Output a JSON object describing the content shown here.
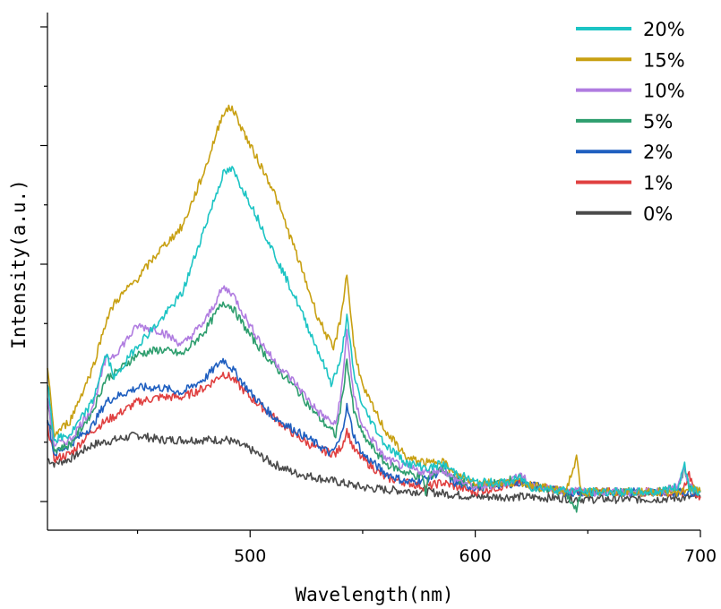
{
  "chart_data": {
    "type": "line",
    "xlabel": "Wavelength(nm)",
    "ylabel": "Intensity(a.u.)",
    "xlim": [
      410,
      700
    ],
    "ylim": [
      0,
      1.0
    ],
    "xticks": [
      500,
      600,
      700
    ],
    "legend": "top-right",
    "grid": false,
    "series": [
      {
        "name": "20%",
        "color": "#1CC4C4",
        "points": [
          [
            410,
            0.25
          ],
          [
            413,
            0.13
          ],
          [
            420,
            0.14
          ],
          [
            430,
            0.21
          ],
          [
            436,
            0.31
          ],
          [
            440,
            0.26
          ],
          [
            450,
            0.33
          ],
          [
            460,
            0.38
          ],
          [
            470,
            0.44
          ],
          [
            480,
            0.58
          ],
          [
            488,
            0.69
          ],
          [
            492,
            0.7
          ],
          [
            500,
            0.63
          ],
          [
            510,
            0.53
          ],
          [
            520,
            0.43
          ],
          [
            530,
            0.32
          ],
          [
            536,
            0.25
          ],
          [
            540,
            0.29
          ],
          [
            543,
            0.39
          ],
          [
            546,
            0.27
          ],
          [
            550,
            0.2
          ],
          [
            560,
            0.12
          ],
          [
            570,
            0.08
          ],
          [
            580,
            0.07
          ],
          [
            585,
            0.08
          ],
          [
            588,
            0.07
          ],
          [
            600,
            0.04
          ],
          [
            615,
            0.04
          ],
          [
            620,
            0.05
          ],
          [
            625,
            0.03
          ],
          [
            650,
            0.02
          ],
          [
            680,
            0.02
          ],
          [
            690,
            0.03
          ],
          [
            693,
            0.08
          ],
          [
            695,
            0.03
          ],
          [
            700,
            0.02
          ]
        ]
      },
      {
        "name": "15%",
        "color": "#C8A012",
        "points": [
          [
            410,
            0.28
          ],
          [
            413,
            0.14
          ],
          [
            420,
            0.17
          ],
          [
            430,
            0.28
          ],
          [
            436,
            0.38
          ],
          [
            440,
            0.42
          ],
          [
            450,
            0.47
          ],
          [
            460,
            0.53
          ],
          [
            470,
            0.58
          ],
          [
            480,
            0.7
          ],
          [
            488,
            0.82
          ],
          [
            492,
            0.83
          ],
          [
            500,
            0.75
          ],
          [
            510,
            0.66
          ],
          [
            520,
            0.53
          ],
          [
            530,
            0.39
          ],
          [
            537,
            0.32
          ],
          [
            540,
            0.38
          ],
          [
            543,
            0.48
          ],
          [
            546,
            0.33
          ],
          [
            550,
            0.24
          ],
          [
            560,
            0.15
          ],
          [
            570,
            0.09
          ],
          [
            580,
            0.08
          ],
          [
            585,
            0.09
          ],
          [
            590,
            0.06
          ],
          [
            600,
            0.04
          ],
          [
            620,
            0.04
          ],
          [
            640,
            0.02
          ],
          [
            645,
            0.09
          ],
          [
            647,
            0.02
          ],
          [
            680,
            0.02
          ],
          [
            692,
            0.02
          ],
          [
            695,
            0.03
          ],
          [
            700,
            0.02
          ]
        ]
      },
      {
        "name": "10%",
        "color": "#B07CE0",
        "points": [
          [
            410,
            0.22
          ],
          [
            413,
            0.12
          ],
          [
            420,
            0.13
          ],
          [
            430,
            0.2
          ],
          [
            436,
            0.3
          ],
          [
            440,
            0.31
          ],
          [
            450,
            0.37
          ],
          [
            460,
            0.36
          ],
          [
            470,
            0.33
          ],
          [
            480,
            0.38
          ],
          [
            488,
            0.45
          ],
          [
            492,
            0.44
          ],
          [
            500,
            0.37
          ],
          [
            510,
            0.3
          ],
          [
            520,
            0.25
          ],
          [
            530,
            0.19
          ],
          [
            538,
            0.16
          ],
          [
            541,
            0.25
          ],
          [
            543,
            0.36
          ],
          [
            546,
            0.22
          ],
          [
            550,
            0.16
          ],
          [
            560,
            0.09
          ],
          [
            570,
            0.07
          ],
          [
            580,
            0.06
          ],
          [
            585,
            0.07
          ],
          [
            590,
            0.05
          ],
          [
            600,
            0.03
          ],
          [
            615,
            0.04
          ],
          [
            620,
            0.06
          ],
          [
            625,
            0.03
          ],
          [
            650,
            0.02
          ],
          [
            680,
            0.02
          ],
          [
            690,
            0.03
          ],
          [
            693,
            0.07
          ],
          [
            695,
            0.03
          ],
          [
            700,
            0.02
          ]
        ]
      },
      {
        "name": "5%",
        "color": "#2E9E6E",
        "points": [
          [
            410,
            0.21
          ],
          [
            413,
            0.11
          ],
          [
            420,
            0.12
          ],
          [
            430,
            0.19
          ],
          [
            436,
            0.26
          ],
          [
            440,
            0.27
          ],
          [
            450,
            0.31
          ],
          [
            460,
            0.32
          ],
          [
            470,
            0.31
          ],
          [
            480,
            0.36
          ],
          [
            488,
            0.42
          ],
          [
            492,
            0.41
          ],
          [
            500,
            0.35
          ],
          [
            510,
            0.29
          ],
          [
            520,
            0.24
          ],
          [
            530,
            0.18
          ],
          [
            538,
            0.14
          ],
          [
            541,
            0.22
          ],
          [
            543,
            0.3
          ],
          [
            546,
            0.19
          ],
          [
            550,
            0.14
          ],
          [
            560,
            0.08
          ],
          [
            570,
            0.06
          ],
          [
            577,
            0.05
          ],
          [
            578,
            0.01
          ],
          [
            579,
            0.05
          ],
          [
            585,
            0.07
          ],
          [
            590,
            0.05
          ],
          [
            600,
            0.03
          ],
          [
            620,
            0.05
          ],
          [
            625,
            0.03
          ],
          [
            640,
            0.02
          ],
          [
            645,
            -0.02
          ],
          [
            647,
            0.02
          ],
          [
            680,
            0.02
          ],
          [
            690,
            0.03
          ],
          [
            693,
            0.07
          ],
          [
            695,
            0.03
          ],
          [
            700,
            0.02
          ]
        ]
      },
      {
        "name": "2%",
        "color": "#1F5FC0",
        "points": [
          [
            410,
            0.18
          ],
          [
            413,
            0.1
          ],
          [
            420,
            0.12
          ],
          [
            430,
            0.16
          ],
          [
            436,
            0.21
          ],
          [
            440,
            0.22
          ],
          [
            450,
            0.24
          ],
          [
            460,
            0.24
          ],
          [
            470,
            0.23
          ],
          [
            480,
            0.26
          ],
          [
            488,
            0.3
          ],
          [
            492,
            0.28
          ],
          [
            500,
            0.23
          ],
          [
            510,
            0.18
          ],
          [
            520,
            0.15
          ],
          [
            530,
            0.12
          ],
          [
            536,
            0.1
          ],
          [
            540,
            0.13
          ],
          [
            543,
            0.2
          ],
          [
            546,
            0.14
          ],
          [
            550,
            0.1
          ],
          [
            560,
            0.06
          ],
          [
            570,
            0.04
          ],
          [
            580,
            0.05
          ],
          [
            586,
            0.07
          ],
          [
            590,
            0.04
          ],
          [
            600,
            0.03
          ],
          [
            620,
            0.04
          ],
          [
            640,
            0.02
          ],
          [
            680,
            0.02
          ],
          [
            700,
            0.02
          ]
        ]
      },
      {
        "name": "1%",
        "color": "#E04040",
        "points": [
          [
            410,
            0.16
          ],
          [
            413,
            0.09
          ],
          [
            420,
            0.1
          ],
          [
            430,
            0.15
          ],
          [
            436,
            0.17
          ],
          [
            440,
            0.18
          ],
          [
            450,
            0.21
          ],
          [
            460,
            0.22
          ],
          [
            470,
            0.22
          ],
          [
            480,
            0.24
          ],
          [
            488,
            0.27
          ],
          [
            492,
            0.26
          ],
          [
            500,
            0.22
          ],
          [
            510,
            0.18
          ],
          [
            520,
            0.14
          ],
          [
            530,
            0.11
          ],
          [
            538,
            0.1
          ],
          [
            541,
            0.12
          ],
          [
            543,
            0.15
          ],
          [
            546,
            0.11
          ],
          [
            550,
            0.09
          ],
          [
            560,
            0.05
          ],
          [
            570,
            0.04
          ],
          [
            578,
            0.03
          ],
          [
            585,
            0.04
          ],
          [
            600,
            0.02
          ],
          [
            620,
            0.04
          ],
          [
            640,
            0.02
          ],
          [
            680,
            0.02
          ],
          [
            692,
            0.02
          ],
          [
            695,
            0.06
          ],
          [
            697,
            0.02
          ],
          [
            700,
            0.01
          ]
        ]
      },
      {
        "name": "0%",
        "color": "#4A4A4A",
        "points": [
          [
            410,
            0.09
          ],
          [
            413,
            0.08
          ],
          [
            420,
            0.09
          ],
          [
            430,
            0.12
          ],
          [
            440,
            0.13
          ],
          [
            450,
            0.14
          ],
          [
            460,
            0.13
          ],
          [
            470,
            0.13
          ],
          [
            480,
            0.13
          ],
          [
            490,
            0.13
          ],
          [
            500,
            0.11
          ],
          [
            510,
            0.08
          ],
          [
            520,
            0.06
          ],
          [
            530,
            0.05
          ],
          [
            540,
            0.04
          ],
          [
            550,
            0.03
          ],
          [
            560,
            0.025
          ],
          [
            580,
            0.02
          ],
          [
            600,
            0.01
          ],
          [
            620,
            0.01
          ],
          [
            650,
            0.005
          ],
          [
            680,
            0.005
          ],
          [
            700,
            0.01
          ]
        ]
      }
    ]
  }
}
